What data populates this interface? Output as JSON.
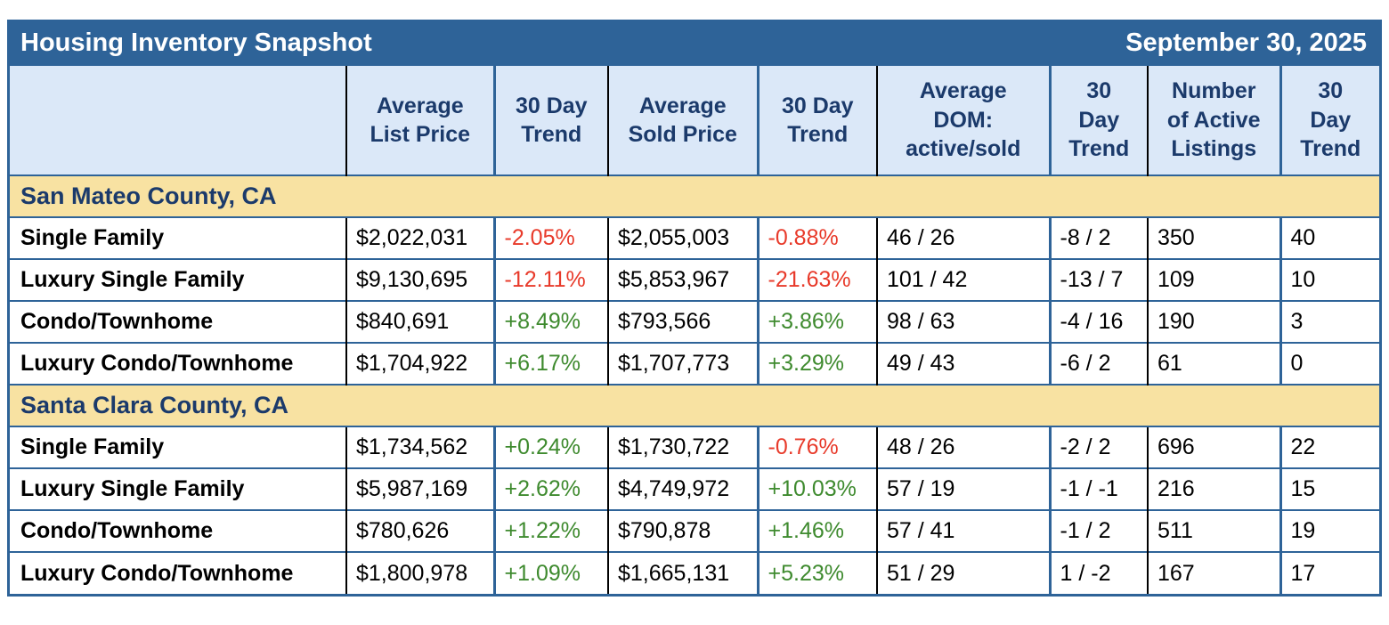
{
  "colors": {
    "title_bar_bg": "#2e6398",
    "frame_blue": "#2e6398",
    "header_bg": "#dbe8f8",
    "section_bg": "#f8e2a2",
    "navy_text": "#1b3a6b",
    "positive_green": "#3e8a2e",
    "negative_red": "#e83a2a",
    "black_border": "#000000"
  },
  "chart_data": {
    "type": "table",
    "title": "Housing Inventory Snapshot",
    "date": "September 30, 2025",
    "column_headers": [
      [],
      [
        "Average",
        "List Price"
      ],
      [
        "30 Day",
        "Trend"
      ],
      [
        "Average",
        "Sold Price"
      ],
      [
        "30 Day",
        "Trend"
      ],
      [
        "Average",
        "DOM:",
        "active/sold"
      ],
      [
        "30",
        "Day",
        "Trend"
      ],
      [
        "Number",
        "of Active",
        "Listings"
      ],
      [
        "30",
        "Day",
        "Trend"
      ]
    ],
    "sections": [
      {
        "name": "San Mateo County, CA",
        "rows": [
          [
            "Single Family",
            "$2,022,031",
            "-2.05%",
            "$2,055,003",
            "-0.88%",
            "46 / 26",
            "-8 / 2",
            "350",
            "40"
          ],
          [
            "Luxury Single Family",
            "$9,130,695",
            "-12.11%",
            "$5,853,967",
            "-21.63%",
            "101 / 42",
            "-13 / 7",
            "109",
            "10"
          ],
          [
            "Condo/Townhome",
            "$840,691",
            "+8.49%",
            "$793,566",
            "+3.86%",
            "98 / 63",
            "-4 / 16",
            "190",
            "3"
          ],
          [
            "Luxury Condo/Townhome",
            "$1,704,922",
            "+6.17%",
            "$1,707,773",
            "+3.29%",
            "49 / 43",
            "-6 / 2",
            "61",
            "0"
          ]
        ]
      },
      {
        "name": "Santa Clara County, CA",
        "rows": [
          [
            "Single Family",
            "$1,734,562",
            "+0.24%",
            "$1,730,722",
            "-0.76%",
            "48 / 26",
            "-2 / 2",
            "696",
            "22"
          ],
          [
            "Luxury Single Family",
            "$5,987,169",
            "+2.62%",
            "$4,749,972",
            "+10.03%",
            "57 / 19",
            "-1 / -1",
            "216",
            "15"
          ],
          [
            "Condo/Townhome",
            "$780,626",
            "+1.22%",
            "$790,878",
            "+1.46%",
            "57 / 41",
            "-1 / 2",
            "511",
            "19"
          ],
          [
            "Luxury Condo/Townhome",
            "$1,800,978",
            "+1.09%",
            "$1,665,131",
            "+5.23%",
            "51 / 29",
            "1 / -2",
            "167",
            "17"
          ]
        ]
      }
    ]
  }
}
